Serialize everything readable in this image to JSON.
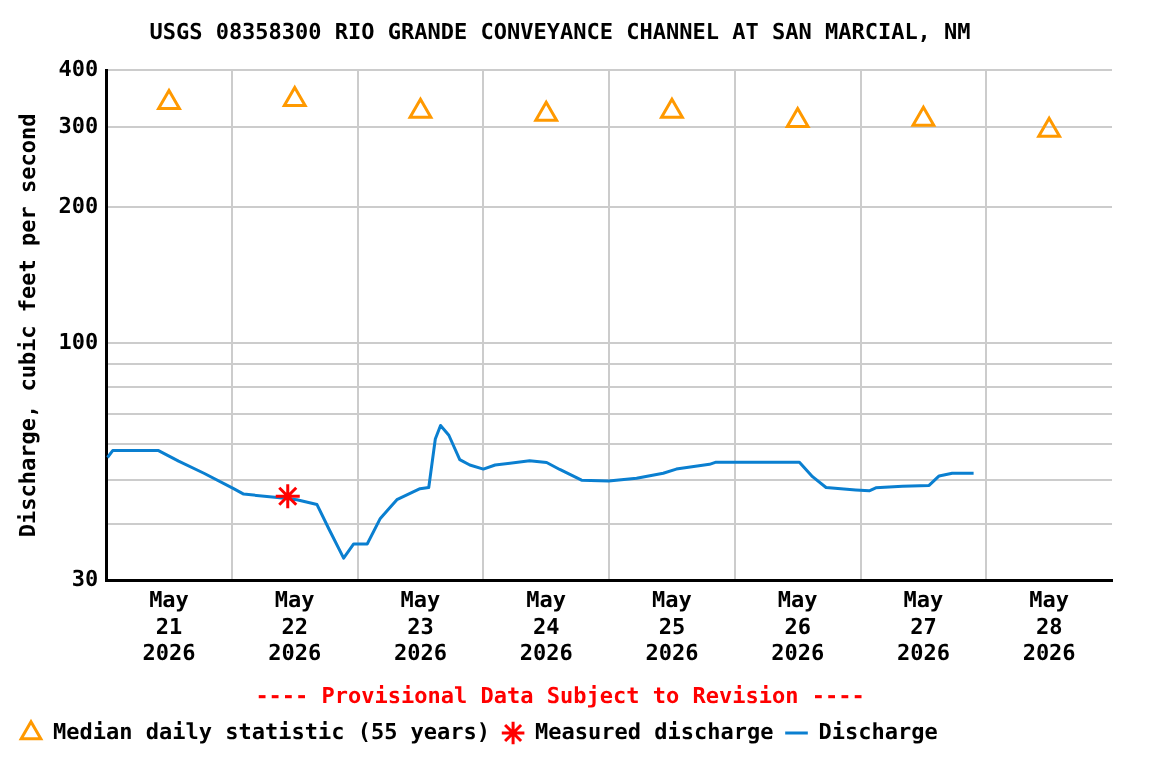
{
  "chart_data": {
    "type": "line",
    "title": "USGS 08358300 RIO GRANDE CONVEYANCE CHANNEL AT SAN MARCIAL, NM",
    "ylabel": "Discharge, cubic feet per second",
    "annotations": [
      "---- Provisional Data Subject to Revision ----"
    ],
    "xlim": [
      "2026-05-21",
      "2026-05-29"
    ],
    "xticks": [
      {
        "value": "2026-05-21T12:00",
        "label": "May 21 2026"
      },
      {
        "value": "2026-05-22",
        "label": null
      },
      {
        "value": "2026-05-22T12:00",
        "label": "May 22 2026"
      },
      {
        "value": "2026-05-23",
        "label": null
      },
      {
        "value": "2026-05-23T12:00",
        "label": "May 23 2026"
      },
      {
        "value": "2026-05-24",
        "label": null
      },
      {
        "value": "2026-05-24T12:00",
        "label": "May 24 2026"
      },
      {
        "value": "2026-05-25",
        "label": null
      },
      {
        "value": "2026-05-25T12:00",
        "label": "May 25 2026"
      },
      {
        "value": "2026-05-26",
        "label": null
      },
      {
        "value": "2026-05-26T12:00",
        "label": "May 26 2026"
      },
      {
        "value": "2026-05-27",
        "label": null
      },
      {
        "value": "2026-05-27T12:00",
        "label": "May 27 2026"
      },
      {
        "value": "2026-05-28",
        "label": null
      },
      {
        "value": "2026-05-28T12:00",
        "label": "May 28 2026"
      }
    ],
    "ylim": [
      30,
      400
    ],
    "log": true,
    "yticks": [
      30,
      {
        "value": 40,
        "label": null
      },
      {
        "value": 50,
        "label": null
      },
      {
        "value": 60,
        "label": null
      },
      {
        "value": 70,
        "label": null
      },
      {
        "value": 80,
        "label": null
      },
      {
        "value": 90,
        "label": null
      },
      100,
      200,
      300,
      400
    ],
    "grid": true,
    "legend": "bottom",
    "series": [
      {
        "name": "Median daily statistic (55 years)",
        "type": "scatter",
        "marker": "triangle",
        "color": "#ff9900",
        "x": [
          "2026-05-21T12:00",
          "2026-05-22T12:00",
          "2026-05-23T12:00",
          "2026-05-24T12:00",
          "2026-05-25T12:00",
          "2026-05-26T12:00",
          "2026-05-27T12:00",
          "2026-05-28T12:00"
        ],
        "values": [
          340,
          345,
          325,
          320,
          325,
          310,
          312,
          295
        ]
      },
      {
        "name": "Measured discharge",
        "type": "scatter",
        "marker": "cross",
        "color": "#ff0000",
        "x": [
          "2026-05-22T10:40"
        ],
        "values": [
          46
        ]
      },
      {
        "name": "Discharge",
        "marker": "none",
        "color": "#0a7fd0",
        "x": [
          "2026-05-21T00:15",
          "2026-05-21T01:15",
          "2026-05-21T10:00",
          "2026-05-21T13:50",
          "2026-05-21T18:40",
          "2026-05-22T00:20",
          "2026-05-22T02:15",
          "2026-05-22T08:40",
          "2026-05-22T12:25",
          "2026-05-22T16:15",
          "2026-05-22T18:30",
          "2026-05-22T21:20",
          "2026-05-22T23:15",
          "2026-05-23T01:50",
          "2026-05-23T04:20",
          "2026-05-23T07:30",
          "2026-05-23T11:55",
          "2026-05-23T13:35",
          "2026-05-23T14:50",
          "2026-05-23T15:50",
          "2026-05-23T17:25",
          "2026-05-23T19:30",
          "2026-05-23T21:25",
          "2026-05-24T00:00",
          "2026-05-24T02:15",
          "2026-05-24T08:50",
          "2026-05-24T12:05",
          "2026-05-24T14:35",
          "2026-05-24T18:45",
          "2026-05-24T23:55",
          "2026-05-25T05:15",
          "2026-05-25T10:20",
          "2026-05-25T12:50",
          "2026-05-25T19:10",
          "2026-05-25T20:25",
          "2026-05-26T12:20",
          "2026-05-26T14:50",
          "2026-05-26T17:25",
          "2026-05-26T23:05",
          "2026-05-27T01:40",
          "2026-05-27T02:55",
          "2026-05-27T08:00",
          "2026-05-27T13:05",
          "2026-05-27T15:00",
          "2026-05-27T17:30",
          "2026-05-27T21:35"
        ],
        "values": [
          56,
          58,
          58,
          55,
          51.7,
          47.8,
          46.5,
          45.7,
          45.2,
          44.1,
          39,
          33.6,
          36.1,
          36.1,
          41.1,
          45.2,
          47.8,
          48.1,
          61.5,
          65.9,
          62.7,
          55.4,
          53.9,
          52.8,
          53.9,
          55.1,
          54.6,
          52.7,
          49.9,
          49.7,
          50.4,
          51.7,
          52.8,
          54.1,
          54.7,
          54.7,
          50.8,
          48.1,
          47.5,
          47.3,
          48,
          48.4,
          48.6,
          51,
          51.7,
          51.7
        ]
      }
    ]
  }
}
